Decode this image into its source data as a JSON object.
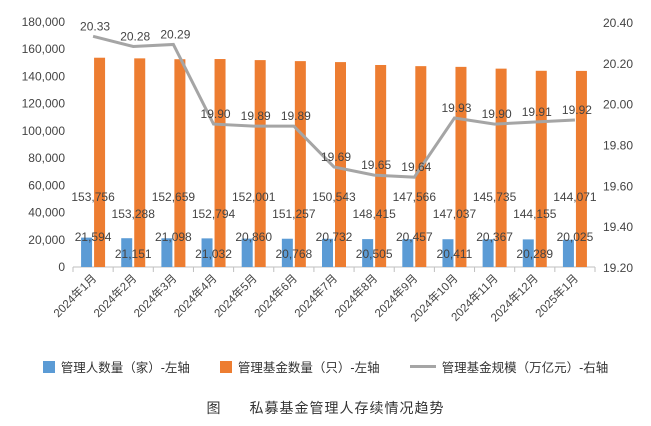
{
  "chart_data": {
    "type": "bar",
    "categories": [
      "2024年1月",
      "2024年2月",
      "2024年3月",
      "2024年4月",
      "2024年5月",
      "2024年6月",
      "2024年7月",
      "2024年8月",
      "2024年9月",
      "2024年10月",
      "2024年11月",
      "2024年12月",
      "2025年1月"
    ],
    "series": [
      {
        "name": "管理人数量（家）-左轴",
        "type": "bar",
        "axis": "left",
        "color": "#5B9BD5",
        "values": [
          21594,
          21151,
          21098,
          21032,
          20860,
          20768,
          20732,
          20505,
          20457,
          20411,
          20367,
          20289,
          20025
        ],
        "labels": [
          "21,594",
          "21,151",
          "21,098",
          "21,032",
          "20,860",
          "20,768",
          "20,732",
          "20,505",
          "20,457",
          "20,411",
          "20,367",
          "20,289",
          "20,025"
        ]
      },
      {
        "name": "管理基金数量（只）-左轴",
        "type": "bar",
        "axis": "left",
        "color": "#ED7D31",
        "values": [
          153756,
          153288,
          152659,
          152794,
          152001,
          151257,
          150543,
          148415,
          147566,
          147037,
          145735,
          144155,
          144071
        ],
        "labels": [
          "153,756",
          "153,288",
          "152,659",
          "152,794",
          "152,001",
          "151,257",
          "150,543",
          "148,415",
          "147,566",
          "147,037",
          "145,735",
          "144,155",
          "144,071"
        ]
      },
      {
        "name": "管理基金规模（万亿元）-右轴",
        "type": "line",
        "axis": "right",
        "color": "#A5A5A5",
        "values": [
          20.33,
          20.28,
          20.29,
          19.9,
          19.89,
          19.89,
          19.69,
          19.65,
          19.64,
          19.93,
          19.9,
          19.91,
          19.92
        ],
        "labels": [
          "20.33",
          "20.28",
          "20.29",
          "19.90",
          "19.89",
          "19.89",
          "19.69",
          "19.65",
          "19.64",
          "19.93",
          "19.90",
          "19.91",
          "19.92"
        ]
      }
    ],
    "left_axis": {
      "ylim": [
        0,
        180000
      ],
      "ticks": [
        "0",
        "20,000",
        "40,000",
        "60,000",
        "80,000",
        "100,000",
        "120,000",
        "140,000",
        "160,000",
        "180,000"
      ]
    },
    "right_axis": {
      "ylim": [
        19.2,
        20.4
      ],
      "ticks": [
        "19.20",
        "19.40",
        "19.60",
        "19.80",
        "20.00",
        "20.20",
        "20.40"
      ]
    },
    "grid": false,
    "legend_placement": "bottom",
    "caption_prefix": "图",
    "caption": "私募基金管理人存续情况趋势"
  }
}
